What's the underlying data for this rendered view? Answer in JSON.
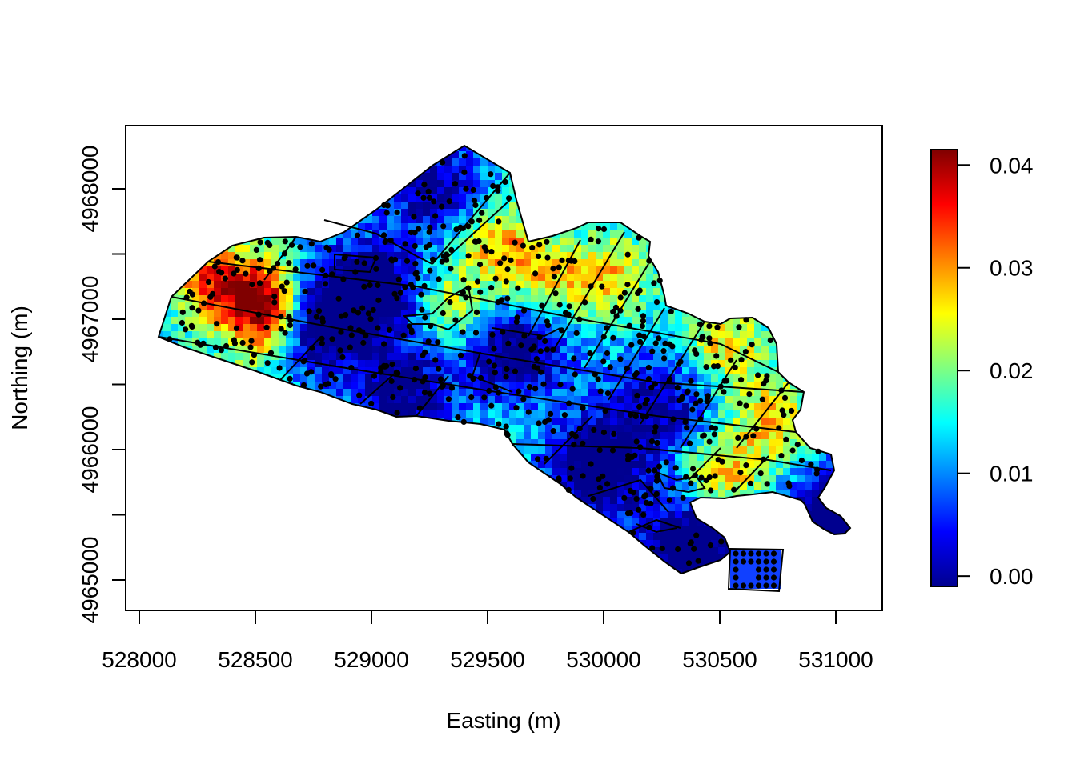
{
  "chart_data": {
    "type": "heatmap",
    "title": "",
    "xlabel": "Easting (m)",
    "ylabel": "Northing (m)",
    "xlim": [
      527950,
      531200
    ],
    "ylim": [
      4964880,
      4968500
    ],
    "x_ticks": [
      528000,
      528500,
      529000,
      529500,
      530000,
      530500,
      531000
    ],
    "x_tick_labels": [
      "528000",
      "528500",
      "529000",
      "529500",
      "530000",
      "530500",
      "531000"
    ],
    "y_ticks": [
      4965000,
      4965500,
      4966000,
      4966500,
      4967000,
      4967500,
      4968000
    ],
    "y_tick_labels": [
      "4965000",
      "",
      "4966000",
      "",
      "4967000",
      "",
      "4968000"
    ],
    "colorbar": {
      "range": [
        -0.001,
        0.0415
      ],
      "ticks": [
        0.0,
        0.01,
        0.02,
        0.03,
        0.04
      ],
      "tick_labels": [
        "0.00",
        "0.01",
        "0.02",
        "0.03",
        "0.04"
      ],
      "palette": [
        "#00008f",
        "#0000ff",
        "#0080ff",
        "#00ffff",
        "#80ff80",
        "#ffff00",
        "#ff8000",
        "#ff0000",
        "#800000"
      ]
    },
    "grid": false,
    "legend": "right"
  }
}
